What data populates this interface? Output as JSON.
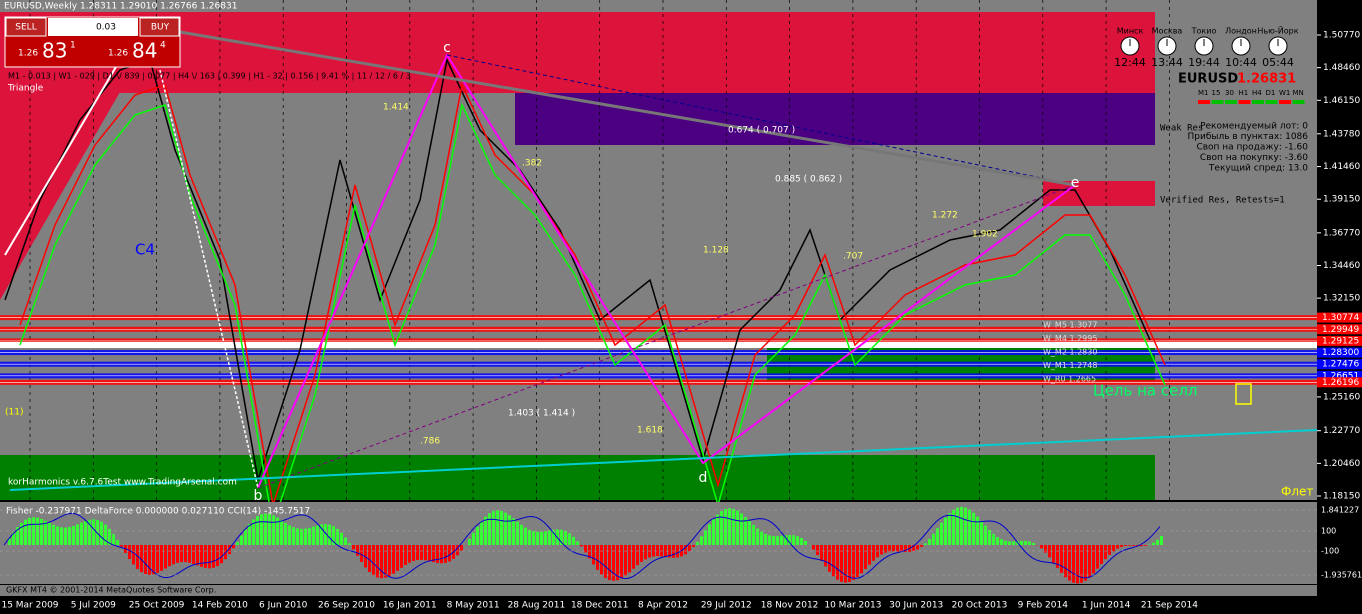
{
  "header": {
    "symbol_line": "EURUSD,Weekly  1.28311 1.29010 1.26766 1.26831",
    "stats_line": "M1 - 0.013 | W1 - 029 | D1 \\/ 839 | 0.077 | H4 \\/ 163 | 0.399 | H1 - 32 | 0.156 | 9.41 % | 11 / 12 / 6 / 3",
    "pattern_name": "Triangle",
    "count": "(11)"
  },
  "trade_panel": {
    "sell": "SELL",
    "buy": "BUY",
    "lot": "0.03",
    "sell_price": {
      "prefix": "1.26",
      "big": "83",
      "small": "1"
    },
    "buy_price": {
      "prefix": "1.26",
      "big": "84",
      "small": "4"
    }
  },
  "clocks": {
    "cities": [
      "Минск",
      "Москва",
      "Токио",
      "Лондон",
      "Нью-Йорк"
    ],
    "times": [
      "12:44",
      "13:44",
      "19:44",
      "10:44",
      "05:44"
    ]
  },
  "symbol_panel": {
    "symbol": "EURUSD",
    "price": "1.26831",
    "timeframes": [
      "M1",
      "15",
      "30",
      "H1",
      "H4",
      "D1",
      "W1",
      "MN"
    ]
  },
  "info_lines": [
    "Рекомендуемый лот: 0",
    "Прибыль в пунктах: 1086",
    "Своп на продажу: -1.60",
    "Своп на покупку: -3.60",
    "Текущий спред: 13.0"
  ],
  "zone_labels": {
    "weak": "Weak Res",
    "verified": "Verified Res, Retests=1"
  },
  "pattern_points": {
    "b": "b",
    "c": "c",
    "d": "d",
    "e": "e",
    "wave": "C4"
  },
  "ratio_labels": [
    "0.674 ( 0.707 )",
    "0.885 ( 0.862 )",
    "1.403 ( 1.414 )",
    "1.414",
    ".382",
    "1.128",
    ".707",
    "1.272",
    "1.902",
    "1.618",
    ".786"
  ],
  "w_levels": [
    "W_M5 1.3077",
    "W_M4 1.2995",
    "W_M2 1.2830",
    "W_M1 1.2748",
    "W_R0 1.2665"
  ],
  "annotations": {
    "watermark": "korHarmonics v.6.7.6Test www.TradingArsenal.com",
    "flat": "Флет",
    "target": "Цель на селл"
  },
  "price_axis": [
    "1.50770",
    "1.48460",
    "1.46150",
    "1.43780",
    "1.41460",
    "1.39150",
    "1.36770",
    "1.34460",
    "1.32150",
    "1.25160",
    "1.22770",
    "1.20460",
    "1.18150"
  ],
  "price_levels": [
    {
      "label": "1.30774",
      "color": "#ff0000"
    },
    {
      "label": "1.29949",
      "color": "#ff0000"
    },
    {
      "label": "1.29125",
      "color": "#ff0000"
    },
    {
      "label": "1.28300",
      "color": "#0000ff"
    },
    {
      "label": "1.27476",
      "color": "#0000ff"
    },
    {
      "label": "1.26651",
      "color": "#0000ff"
    },
    {
      "label": "1.26196",
      "color": "#ff0000"
    }
  ],
  "indicator": {
    "header": "Fisher -0.237971  DeltaForce 0.000000 0.027110  CCI(14) -145.7517",
    "axis": [
      "1.841227",
      "100",
      "-100",
      "-1.935761"
    ]
  },
  "date_axis": [
    "15 Mar 2009",
    "5 Jul 2009",
    "25 Oct 2009",
    "14 Feb 2010",
    "6 Jun 2010",
    "26 Sep 2010",
    "16 Jan 2011",
    "8 May 2011",
    "28 Aug 2011",
    "18 Dec 2011",
    "8 Apr 2012",
    "29 Jul 2012",
    "18 Nov 2012",
    "10 Mar 2013",
    "30 Jun 2013",
    "20 Oct 2013",
    "9 Feb 2014",
    "1 Jun 2014",
    "21 Sep 2014"
  ],
  "footer": "GKFX MT4 © 2001-2014 MetaQuotes Software Corp."
}
